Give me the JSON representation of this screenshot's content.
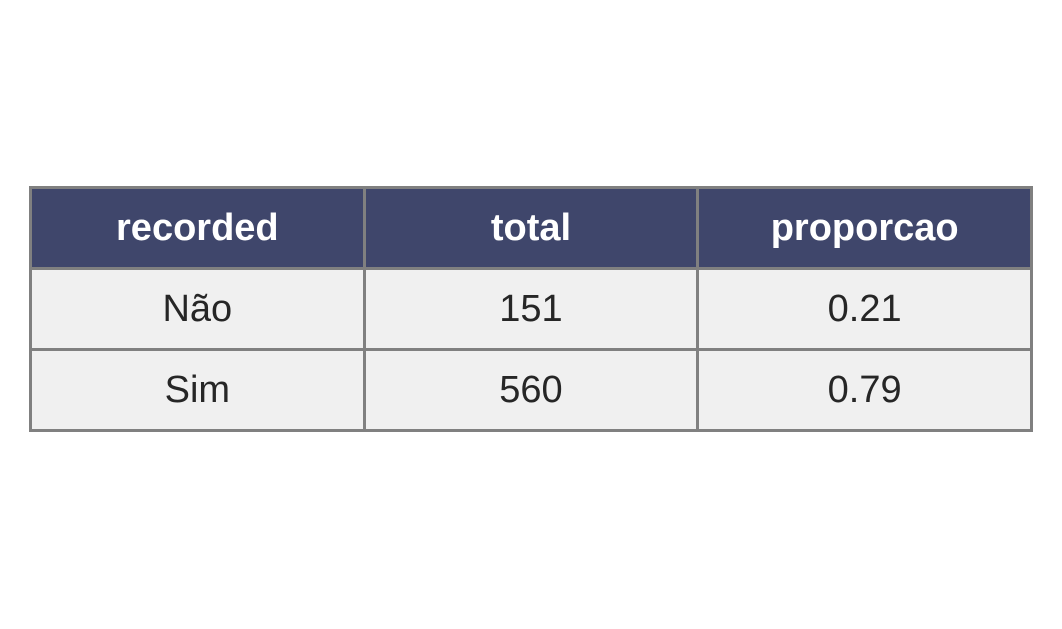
{
  "colors": {
    "header_bg": "#3f466b",
    "header_text": "#ffffff",
    "cell_bg": "#f0f0f0",
    "cell_text": "#262626",
    "border": "#808080"
  },
  "chart_data": {
    "type": "table",
    "columns": [
      "recorded",
      "total",
      "proporcao"
    ],
    "rows": [
      [
        "Não",
        "151",
        "0.21"
      ],
      [
        "Sim",
        "560",
        "0.79"
      ]
    ]
  }
}
